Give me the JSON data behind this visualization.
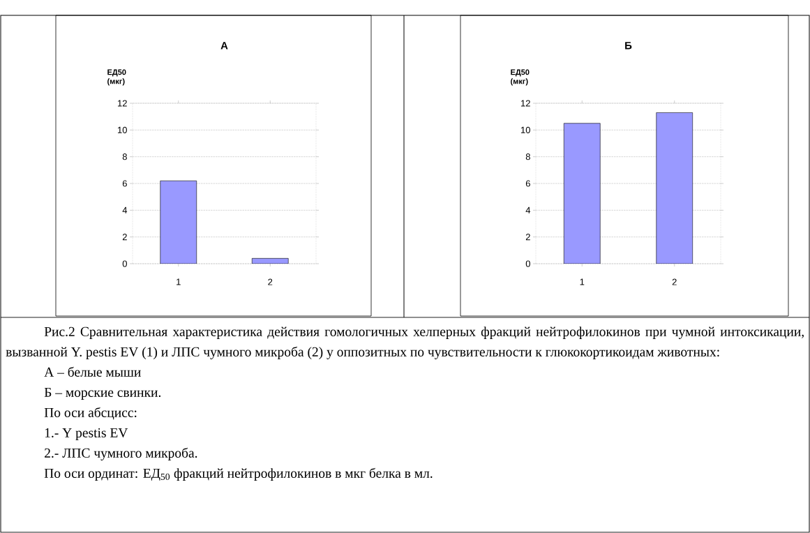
{
  "chart_data": [
    {
      "type": "bar",
      "title": "А",
      "ylabel": "ЕД50 (мкг)",
      "categories": [
        "1",
        "2"
      ],
      "series": [
        {
          "color": "#9999ff",
          "values": [
            6.2,
            0.4
          ]
        }
      ],
      "ylim": [
        0,
        12
      ],
      "yticks": [
        0,
        2,
        4,
        6,
        8,
        10,
        12
      ],
      "grid": "y",
      "annotations": [
        "Рис.2 Сравнительная характеристика действия гомологичных хелперных фракций нейтрофилокинов при чумной интоксикации, вызванной Y. pestis EV (1) и ЛПС чумного микроба (2) у оппозитных по чувствительности к глюкокортикоидам животных:",
        "А – белые мыши",
        "Б – морские свинки.",
        "По оси абсцисс:",
        "1.- Y pestis EV",
        "2.- ЛПС чумного микроба.",
        "По оси ординат: ЕД$_{50}$ фракций нейтрофилокинов в мкг белка в мл."
      ]
    },
    {
      "type": "bar",
      "title": "Б",
      "ylabel": "ЕД50 (мкг)",
      "categories": [
        "1",
        "2"
      ],
      "series": [
        {
          "color": "#9999ff",
          "values": [
            10.5,
            11.3
          ]
        }
      ],
      "ylim": [
        0,
        12
      ],
      "yticks": [
        0,
        2,
        4,
        6,
        8,
        10,
        12
      ],
      "grid": "y"
    }
  ]
}
